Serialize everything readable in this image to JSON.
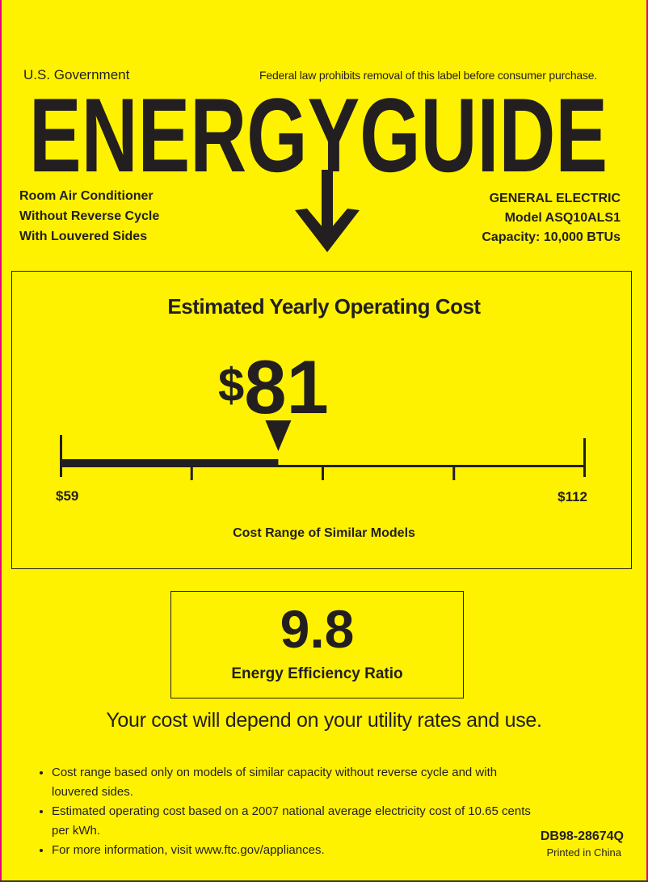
{
  "header": {
    "government": "U.S. Government",
    "notice": "Federal law prohibits removal of this label before consumer purchase.",
    "title": "ENERGYGUIDE"
  },
  "appliance": {
    "lines": [
      "Room Air Conditioner",
      "Without Reverse Cycle",
      "With Louvered Sides"
    ]
  },
  "manufacturer": {
    "brand": "GENERAL ELECTRIC",
    "model": "Model ASQ10ALS1",
    "capacity": "Capacity: 10,000 BTUs"
  },
  "cost": {
    "heading": "Estimated Yearly Operating Cost",
    "currency": "$",
    "value": "81",
    "value_num": 81,
    "range_min": 59,
    "range_max": 112,
    "min_label": "$59",
    "max_label": "$112",
    "range_caption": "Cost Range of Similar Models"
  },
  "efficiency": {
    "value": "9.8",
    "label": "Energy Efficiency Ratio"
  },
  "disclaimer": "Your cost will depend on your utility rates and use.",
  "bullets": [
    "Cost range based only on models of similar capacity without reverse cycle and with louvered sides.",
    "Estimated operating cost based on a 2007 national average electricity cost of 10.65 cents per kWh.",
    "For more information, visit www.ftc.gov/appliances."
  ],
  "footer": {
    "code": "DB98-28674Q",
    "printed": "Printed in China"
  },
  "colors": {
    "background": "#fff200",
    "ink": "#231f20",
    "edge": "#e6007e"
  }
}
